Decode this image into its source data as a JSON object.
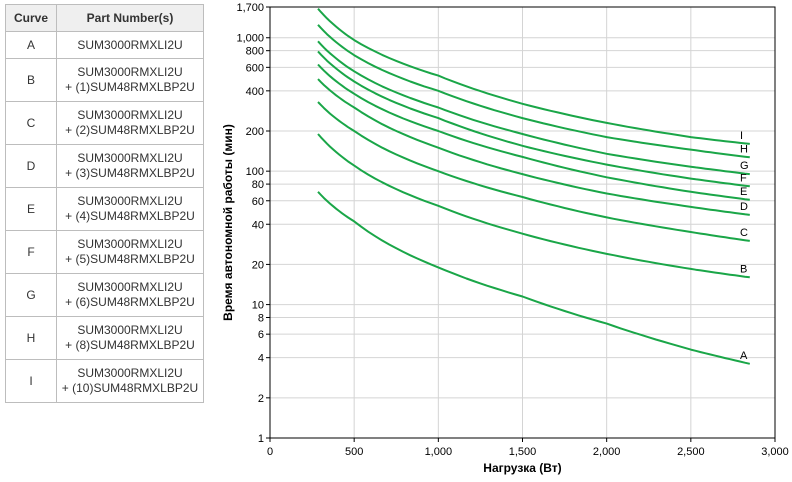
{
  "table": {
    "headers": {
      "curve": "Curve",
      "parts": "Part Number(s)"
    },
    "rows": [
      {
        "curve": "A",
        "line1": "SUM3000RMXLI2U",
        "line2": ""
      },
      {
        "curve": "B",
        "line1": "SUM3000RMXLI2U",
        "line2": "+ (1)SUM48RMXLBP2U"
      },
      {
        "curve": "C",
        "line1": "SUM3000RMXLI2U",
        "line2": "+ (2)SUM48RMXLBP2U"
      },
      {
        "curve": "D",
        "line1": "SUM3000RMXLI2U",
        "line2": "+ (3)SUM48RMXLBP2U"
      },
      {
        "curve": "E",
        "line1": "SUM3000RMXLI2U",
        "line2": "+ (4)SUM48RMXLBP2U"
      },
      {
        "curve": "F",
        "line1": "SUM3000RMXLI2U",
        "line2": "+ (5)SUM48RMXLBP2U"
      },
      {
        "curve": "G",
        "line1": "SUM3000RMXLI2U",
        "line2": "+ (6)SUM48RMXLBP2U"
      },
      {
        "curve": "H",
        "line1": "SUM3000RMXLI2U",
        "line2": "+ (8)SUM48RMXLBP2U"
      },
      {
        "curve": "I",
        "line1": "SUM3000RMXLI2U",
        "line2": "+ (10)SUM48RMXLBP2U"
      }
    ]
  },
  "chart_data": {
    "type": "line",
    "title": "",
    "xlabel": "Нагрузка (Вт)",
    "ylabel": "Время автономной работы (мин)",
    "xlim": [
      0,
      3000
    ],
    "ylim": [
      1,
      1700
    ],
    "yscale": "log",
    "grid": true,
    "line_color": "#1aa648",
    "x_ticks": [
      0,
      500,
      1000,
      1500,
      2000,
      2500,
      3000
    ],
    "x_tick_labels": [
      "0",
      "500",
      "1,000",
      "1,500",
      "2,000",
      "2,500",
      "3,000"
    ],
    "y_ticks": [
      1,
      2,
      4,
      6,
      8,
      10,
      20,
      40,
      60,
      80,
      100,
      200,
      400,
      600,
      800,
      1000,
      1700
    ],
    "y_tick_labels": [
      "1",
      "2",
      "4",
      "6",
      "8",
      "10",
      "20",
      "40",
      "60",
      "80",
      "100",
      "200",
      "400",
      "600",
      "800",
      "1,000",
      "1,700"
    ],
    "x": [
      285,
      500,
      1000,
      1500,
      2000,
      2500,
      2850
    ],
    "series": [
      {
        "name": "A",
        "values": [
          70,
          42,
          19,
          11.5,
          7.2,
          4.6,
          3.6
        ]
      },
      {
        "name": "B",
        "values": [
          190,
          110,
          55,
          34,
          24,
          18.5,
          16
        ]
      },
      {
        "name": "C",
        "values": [
          330,
          200,
          100,
          64,
          45,
          35,
          30
        ]
      },
      {
        "name": "D",
        "values": [
          490,
          300,
          150,
          95,
          68,
          54,
          47
        ]
      },
      {
        "name": "E",
        "values": [
          630,
          380,
          200,
          128,
          90,
          70,
          61
        ]
      },
      {
        "name": "F",
        "values": [
          790,
          470,
          250,
          155,
          112,
          88,
          77
        ]
      },
      {
        "name": "G",
        "values": [
          940,
          560,
          300,
          190,
          135,
          108,
          95
        ]
      },
      {
        "name": "H",
        "values": [
          1250,
          740,
          400,
          250,
          180,
          145,
          127
        ]
      },
      {
        "name": "I",
        "values": [
          1650,
          960,
          520,
          320,
          230,
          180,
          160
        ]
      }
    ]
  }
}
